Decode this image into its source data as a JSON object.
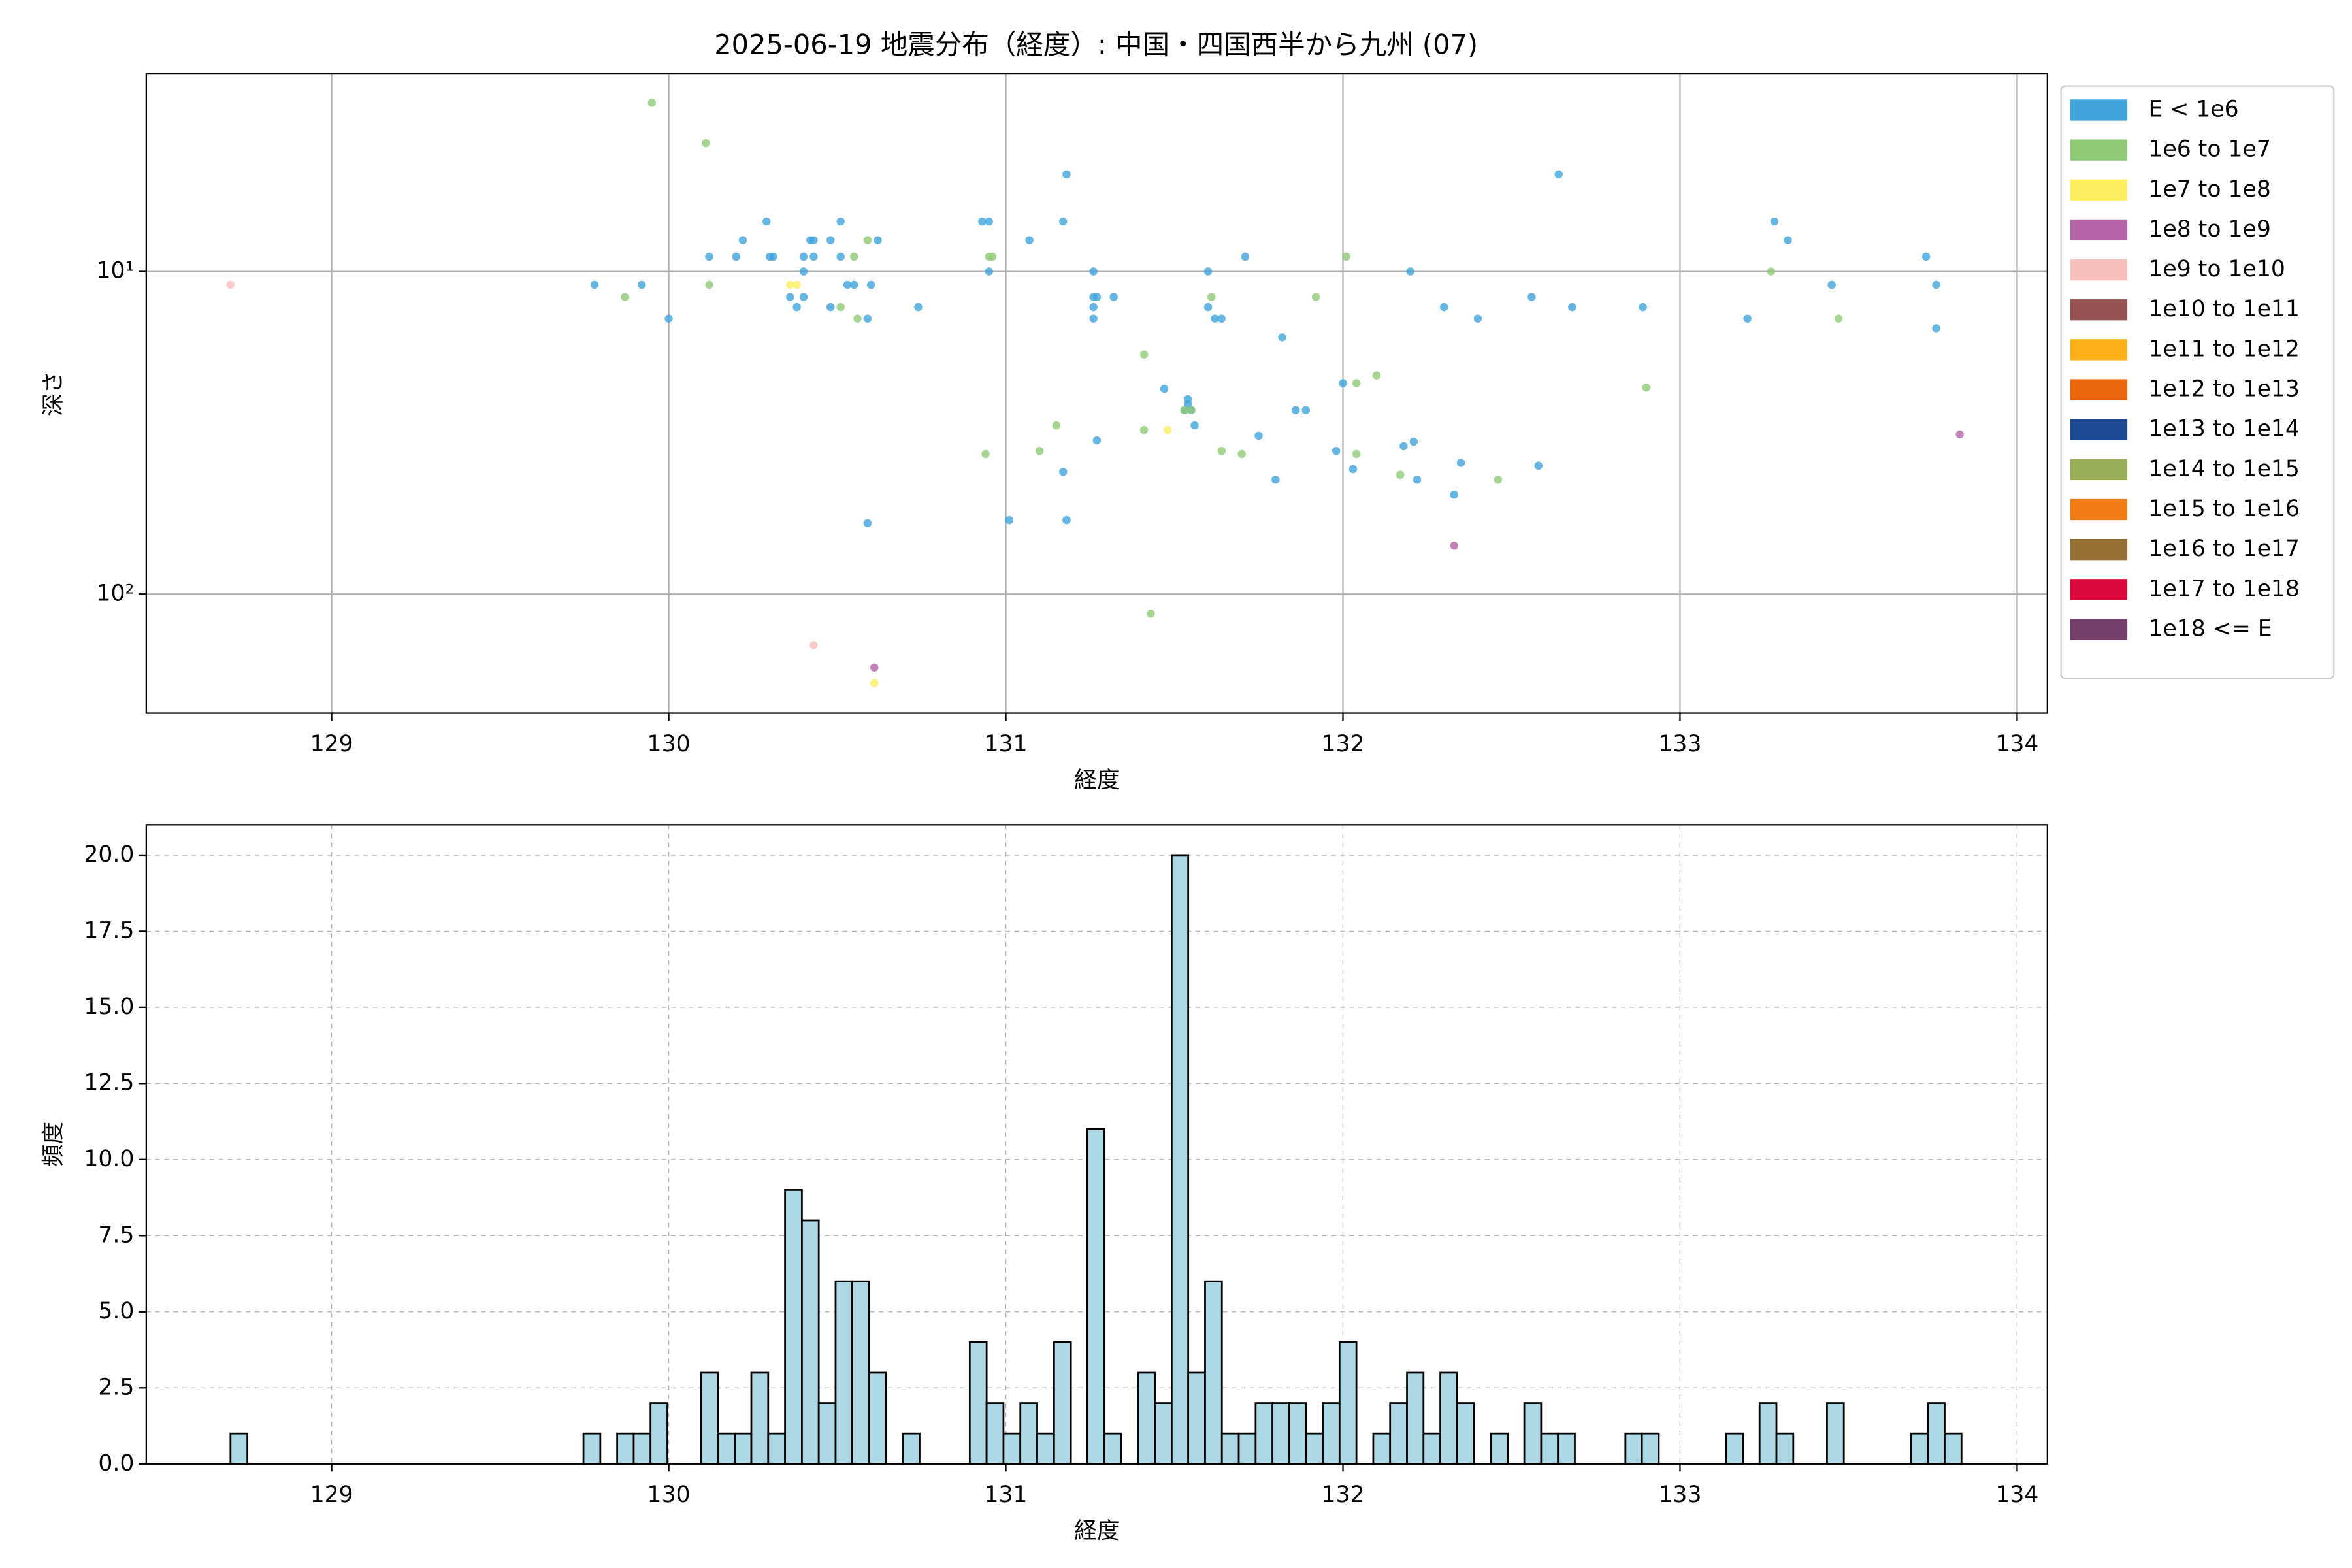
{
  "chart_data": [
    {
      "type": "scatter",
      "title": "2025-06-19 地震分布（経度）: 中国・四国西半から九州 (07)",
      "xlabel": "経度",
      "ylabel": "深さ",
      "xlim": [
        128.45,
        134.09
      ],
      "xticks": [
        129,
        130,
        131,
        132,
        133,
        134
      ],
      "ylim": [
        234,
        2.44
      ],
      "yticks": [
        {
          "value": 10,
          "label": "10¹"
        },
        {
          "value": 100,
          "label": "10²"
        }
      ],
      "log_y": true,
      "grid": true,
      "legend": "outside upper right",
      "series": [
        {
          "name": "E < 1e6",
          "color": "#3fa4dc",
          "x": [
            129.78,
            129.92,
            130.0,
            130.12,
            130.2,
            130.22,
            130.29,
            130.3,
            130.31,
            130.36,
            130.38,
            130.4,
            130.4,
            130.42,
            130.43,
            130.43,
            130.4,
            130.48,
            130.48,
            130.51,
            130.51,
            130.53,
            130.55,
            130.59,
            130.6,
            130.59,
            130.62,
            130.74,
            130.93,
            130.95,
            130.95,
            131.01,
            131.07,
            131.17,
            131.18,
            131.17,
            131.18,
            131.26,
            131.26,
            131.26,
            131.26,
            131.27,
            131.27,
            131.32,
            131.47,
            131.53,
            131.54,
            131.54,
            131.55,
            131.56,
            131.6,
            131.6,
            131.62,
            131.64,
            131.71,
            131.75,
            131.8,
            131.82,
            131.86,
            131.89,
            131.98,
            132.0,
            132.03,
            132.18,
            132.21,
            132.22,
            132.2,
            132.3,
            132.33,
            132.35,
            132.4,
            132.56,
            132.58,
            132.64,
            132.68,
            132.89,
            133.2,
            133.28,
            133.32,
            133.45,
            133.73,
            133.76,
            133.76
          ],
          "values": [
            11.0,
            11.0,
            14.0,
            9.0,
            9.0,
            8.0,
            7.0,
            9.0,
            9.0,
            12.0,
            12.9,
            9.0,
            10.0,
            8.0,
            8.0,
            9.0,
            12.0,
            8.0,
            12.9,
            7.0,
            9.0,
            11.0,
            11.0,
            14.0,
            11.0,
            60.3,
            8.0,
            12.9,
            7.0,
            7.0,
            10.0,
            59.0,
            8.0,
            7.0,
            5.0,
            41.8,
            59.0,
            10.0,
            12.0,
            12.9,
            14.0,
            12.0,
            33.4,
            12.0,
            23.1,
            26.9,
            25.8,
            24.9,
            26.9,
            30.0,
            10.0,
            12.9,
            14.0,
            14.0,
            9.0,
            32.3,
            44.2,
            16.0,
            26.9,
            26.9,
            36.0,
            22.2,
            41.0,
            34.8,
            33.7,
            44.2,
            10.0,
            12.9,
            49.2,
            39.2,
            14.0,
            12.0,
            40.0,
            5.0,
            12.9,
            12.9,
            14.0,
            7.0,
            8.0,
            11.0,
            9.0,
            11.0,
            15.0
          ]
        },
        {
          "name": "1e6 to 1e7",
          "color": "#8fcb76",
          "x": [
            129.87,
            129.95,
            130.11,
            130.12,
            130.55,
            130.51,
            130.56,
            130.59,
            130.95,
            130.96,
            130.94,
            131.1,
            131.15,
            131.41,
            131.41,
            131.43,
            131.53,
            131.55,
            131.61,
            131.64,
            131.7,
            131.92,
            132.01,
            132.04,
            132.04,
            132.1,
            132.17,
            132.46,
            132.9,
            133.27,
            133.47
          ],
          "values": [
            12.0,
            3.0,
            4.0,
            11.0,
            9.0,
            12.9,
            14.0,
            8.0,
            9.0,
            9.0,
            36.8,
            36.0,
            30.0,
            18.1,
            31.0,
            115,
            26.9,
            26.9,
            12.0,
            36.0,
            36.8,
            12.0,
            9.0,
            22.2,
            36.8,
            21.0,
            42.7,
            44.2,
            22.9,
            10.0,
            14.0
          ]
        },
        {
          "name": "1e7 to 1e8",
          "color": "#fdee60",
          "x": [
            130.36,
            130.38,
            131.48,
            130.61
          ],
          "values": [
            11.0,
            11.0,
            31.0,
            189
          ]
        },
        {
          "name": "1e8 to 1e9",
          "color": "#b565a7",
          "x": [
            132.33,
            133.83,
            130.61
          ],
          "values": [
            70.8,
            32.0,
            169
          ]
        },
        {
          "name": "1e9 to 1e10",
          "color": "#f6bfba",
          "x": [
            128.7,
            130.43
          ],
          "values": [
            11.0,
            144
          ]
        },
        {
          "name": "1e10 to 1e11",
          "color": "#955251",
          "x": [],
          "values": []
        },
        {
          "name": "1e11 to 1e12",
          "color": "#fbb117",
          "x": [],
          "values": []
        },
        {
          "name": "1e12 to 1e13",
          "color": "#e9660c",
          "x": [],
          "values": []
        },
        {
          "name": "1e13 to 1e14",
          "color": "#1c4a94",
          "x": [],
          "values": []
        },
        {
          "name": "1e14 to 1e15",
          "color": "#9aae57",
          "x": [],
          "values": []
        },
        {
          "name": "1e15 to 1e16",
          "color": "#f07c13",
          "x": [],
          "values": []
        },
        {
          "name": "1e16 to 1e17",
          "color": "#967032",
          "x": [],
          "values": []
        },
        {
          "name": "1e17 to 1e18",
          "color": "#dc0a3c",
          "x": [],
          "values": []
        },
        {
          "name": "1e18 <= E",
          "color": "#76406e",
          "x": [],
          "values": []
        }
      ]
    },
    {
      "type": "histogram",
      "xlabel": "経度",
      "ylabel": "頻度",
      "xlim": [
        128.45,
        134.09
      ],
      "xticks": [
        129,
        130,
        131,
        132,
        133,
        134
      ],
      "ylim": [
        0,
        21
      ],
      "yticks": [
        {
          "value": 0,
          "label": "0.0"
        },
        {
          "value": 2.5,
          "label": "2.5"
        },
        {
          "value": 5,
          "label": "5.0"
        },
        {
          "value": 7.5,
          "label": "7.5"
        },
        {
          "value": 10,
          "label": "10.0"
        },
        {
          "value": 12.5,
          "label": "12.5"
        },
        {
          "value": 15,
          "label": "15.0"
        },
        {
          "value": 17.5,
          "label": "17.5"
        },
        {
          "value": 20,
          "label": "20.0"
        }
      ],
      "grid": true,
      "grid_style": "dashed",
      "color": "#add8e6",
      "edgecolor": "#000000",
      "bins": [
        128.7,
        128.75,
        128.8,
        128.85,
        128.899,
        128.949,
        128.999,
        129.049,
        129.099,
        129.149,
        129.199,
        129.248,
        129.298,
        129.348,
        129.398,
        129.448,
        129.498,
        129.547,
        129.597,
        129.647,
        129.697,
        129.747,
        129.797,
        129.847,
        129.896,
        129.946,
        129.996,
        130.046,
        130.096,
        130.146,
        130.196,
        130.245,
        130.295,
        130.345,
        130.395,
        130.445,
        130.495,
        130.544,
        130.594,
        130.644,
        130.694,
        130.744,
        130.794,
        130.844,
        130.893,
        130.943,
        130.993,
        131.043,
        131.093,
        131.143,
        131.193,
        131.242,
        131.292,
        131.342,
        131.392,
        131.442,
        131.492,
        131.541,
        131.591,
        131.641,
        131.691,
        131.741,
        131.791,
        131.841,
        131.89,
        131.94,
        131.99,
        132.04,
        132.09,
        132.14,
        132.19,
        132.239,
        132.289,
        132.339,
        132.389,
        132.439,
        132.489,
        132.538,
        132.588,
        132.638,
        132.688,
        132.738,
        132.788,
        132.838,
        132.887,
        132.937,
        132.987,
        133.037,
        133.087,
        133.137,
        133.187,
        133.236,
        133.286,
        133.336,
        133.386,
        133.436,
        133.486,
        133.535,
        133.585,
        133.635,
        133.685,
        133.735,
        133.785,
        133.835
      ],
      "values": [
        1,
        0,
        0,
        0,
        0,
        0,
        0,
        0,
        0,
        0,
        0,
        0,
        0,
        0,
        0,
        0,
        0,
        0,
        0,
        0,
        0,
        1,
        0,
        1,
        1,
        2,
        0,
        0,
        3,
        1,
        1,
        3,
        1,
        9,
        8,
        2,
        6,
        6,
        3,
        0,
        1,
        0,
        0,
        0,
        4,
        2,
        1,
        2,
        1,
        4,
        0,
        11,
        1,
        0,
        3,
        2,
        20,
        3,
        6,
        1,
        1,
        2,
        2,
        2,
        1,
        2,
        4,
        0,
        1,
        2,
        3,
        1,
        3,
        2,
        0,
        1,
        0,
        2,
        1,
        1,
        0,
        0,
        0,
        1,
        1,
        0,
        0,
        0,
        0,
        1,
        0,
        2,
        1,
        0,
        0,
        2,
        0,
        0,
        0,
        0,
        1,
        2,
        1
      ]
    }
  ]
}
